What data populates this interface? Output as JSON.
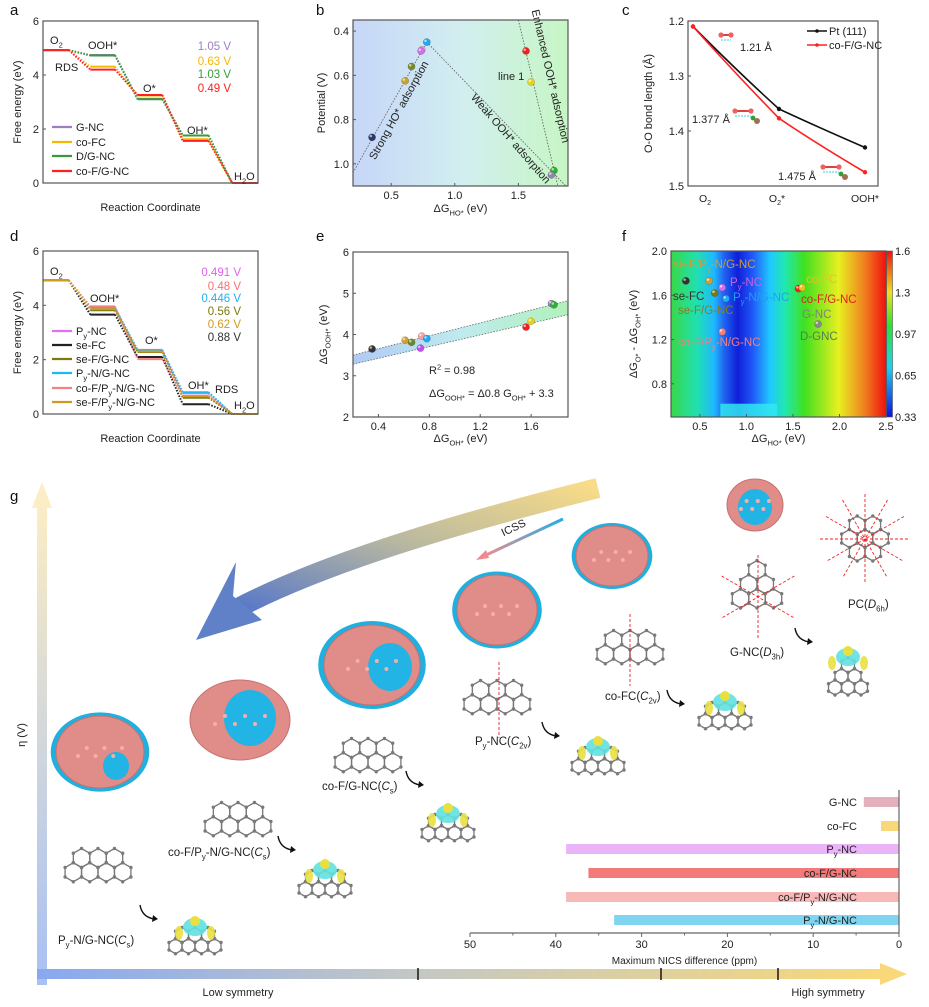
{
  "panel_labels": {
    "a": "a",
    "b": "b",
    "c": "c",
    "d": "d",
    "e": "e",
    "f": "f",
    "g": "g"
  },
  "chart_data": [
    {
      "panel": "a",
      "type": "line",
      "title": "",
      "xlabel": "Reaction Coordinate",
      "ylabel": "Free energy (eV)",
      "ylim": [
        0,
        6
      ],
      "yticks": [
        "0",
        "2",
        "4",
        "6"
      ],
      "steps": [
        "O2",
        "OOH*",
        "O*",
        "OH*",
        "H2O"
      ],
      "annotations": [
        "RDS"
      ],
      "series": [
        {
          "name": "G-NC",
          "color": "#9b7fc0",
          "values": [
            4.92,
            4.74,
            3.12,
            1.76,
            0
          ],
          "overpotential": "1.05 V"
        },
        {
          "name": "co-FC",
          "color": "#f5b800",
          "values": [
            4.92,
            4.31,
            3.24,
            1.62,
            0
          ],
          "overpotential": "0.63 V"
        },
        {
          "name": "D/G-NC",
          "color": "#3a9a3a",
          "values": [
            4.92,
            4.72,
            3.1,
            1.76,
            0
          ],
          "overpotential": "1.03 V"
        },
        {
          "name": "co-F/G-NC",
          "color": "#ff2020",
          "values": [
            4.92,
            4.2,
            3.26,
            1.56,
            0
          ],
          "overpotential": "0.49 V"
        }
      ]
    },
    {
      "panel": "b",
      "type": "scatter",
      "xlabel": "ΔGHO* (eV)",
      "ylabel": "Potential (V)",
      "xlim": [
        0.2,
        1.89
      ],
      "ylim": [
        1.1,
        0.35
      ],
      "xticks": [
        "0.5",
        "1.0",
        "1.5"
      ],
      "yticks": [
        "0.4",
        "0.6",
        "0.8",
        "1.0"
      ],
      "points": [
        {
          "x": 0.35,
          "y": 0.88,
          "color": "#2a3a6a"
        },
        {
          "x": 0.61,
          "y": 0.625,
          "color": "#c8a030"
        },
        {
          "x": 0.66,
          "y": 0.56,
          "color": "#7a8a2a"
        },
        {
          "x": 0.74,
          "y": 0.485,
          "color": "#f0a0c0"
        },
        {
          "x": 0.735,
          "y": 0.49,
          "color": "#d070f0"
        },
        {
          "x": 0.78,
          "y": 0.45,
          "color": "#20a8f0"
        },
        {
          "x": 1.56,
          "y": 0.49,
          "color": "#f02020"
        },
        {
          "x": 1.6,
          "y": 0.63,
          "color": "#e8d020"
        },
        {
          "x": 1.78,
          "y": 1.03,
          "color": "#30b030"
        },
        {
          "x": 1.76,
          "y": 1.05,
          "color": "#8a8aa8"
        }
      ],
      "lines": [
        {
          "from": [
            0.2,
            1.04
          ],
          "to": [
            0.78,
            0.45
          ]
        },
        {
          "from": [
            0.78,
            0.45
          ],
          "to": [
            1.89,
            1.11
          ]
        },
        {
          "from": [
            1.5,
            0.35
          ],
          "to": [
            1.81,
            1.1
          ]
        }
      ],
      "annotations": [
        "Strong HO* adsorption",
        "Weak OOH* adsorption",
        "Enhanced OOH* adsorption",
        "line 1"
      ]
    },
    {
      "panel": "c",
      "type": "line",
      "xlabel": "",
      "ylabel": "O-O bond length (Å)",
      "ylim": [
        1.5,
        1.2
      ],
      "yticks": [
        "1.2",
        "1.3",
        "1.4",
        "1.5"
      ],
      "categories": [
        "O2",
        "O2*",
        "OOH*"
      ],
      "series": [
        {
          "name": "Pt (111)",
          "color": "#111111",
          "values": [
            1.21,
            1.36,
            1.43
          ]
        },
        {
          "name": "co-F/G-NC",
          "color": "#ff2020",
          "values": [
            1.21,
            1.377,
            1.475
          ]
        }
      ],
      "annotations": [
        "1.21 Å",
        "1.377 Å",
        "1.475 Å"
      ]
    },
    {
      "panel": "d",
      "type": "line",
      "xlabel": "Reaction Coordinate",
      "ylabel": "Free energy (eV)",
      "ylim": [
        0,
        6
      ],
      "yticks": [
        "0",
        "2",
        "4",
        "6"
      ],
      "steps": [
        "O2",
        "OOH*",
        "O*",
        "OH*",
        "H2O"
      ],
      "annotations": [
        "RDS"
      ],
      "series": [
        {
          "name": "Py-NC",
          "color": "#e070f0",
          "values": [
            4.92,
            3.9,
            2.36,
            0.76,
            0
          ],
          "overpotential": "0.491 V"
        },
        {
          "name": "se-FC",
          "color": "#222222",
          "values": [
            4.92,
            3.66,
            2.1,
            0.36,
            0
          ],
          "overpotential": "0.88 V"
        },
        {
          "name": "se-F/G-NC",
          "color": "#7a7a10",
          "values": [
            4.92,
            3.82,
            2.28,
            0.6,
            0
          ],
          "overpotential": "0.56 V"
        },
        {
          "name": "Py-N/G-NC",
          "color": "#20b8f0",
          "values": [
            4.92,
            3.9,
            2.34,
            0.8,
            0
          ],
          "overpotential": "0.446 V"
        },
        {
          "name": "co-F/Py-N/G-NC",
          "color": "#f88080",
          "values": [
            4.92,
            3.96,
            2.02,
            0.66,
            0
          ],
          "overpotential": "0.48 V"
        },
        {
          "name": "se-F/Py-N/G-NC",
          "color": "#d09a20",
          "values": [
            4.92,
            3.86,
            2.3,
            0.66,
            0
          ],
          "overpotential": "0.62 V"
        }
      ],
      "overpotential_order": [
        "0.491 V",
        "0.48 V",
        "0.446 V",
        "0.56 V",
        "0.62 V",
        "0.88 V"
      ],
      "overpotential_colors": [
        "#e060f0",
        "#f87070",
        "#20b0f0",
        "#7a7a10",
        "#d09a20",
        "#333333"
      ]
    },
    {
      "panel": "e",
      "type": "scatter",
      "xlabel": "ΔGOH* (eV)",
      "ylabel": "ΔGOOH* (eV)",
      "xlim": [
        0.2,
        1.89
      ],
      "ylim": [
        2,
        6
      ],
      "xticks": [
        "0.4",
        "0.8",
        "1.2",
        "1.6"
      ],
      "yticks": [
        "2",
        "3",
        "4",
        "5",
        "6"
      ],
      "points": [
        {
          "x": 0.35,
          "y": 3.65,
          "color": "#333333"
        },
        {
          "x": 0.61,
          "y": 3.86,
          "color": "#d0a030"
        },
        {
          "x": 0.66,
          "y": 3.81,
          "color": "#6a8a2a"
        },
        {
          "x": 0.74,
          "y": 3.96,
          "color": "#f8a0a0"
        },
        {
          "x": 0.78,
          "y": 3.9,
          "color": "#20a8f0"
        },
        {
          "x": 0.73,
          "y": 3.67,
          "color": "#c050f0"
        },
        {
          "x": 1.56,
          "y": 4.18,
          "color": "#f02020"
        },
        {
          "x": 1.6,
          "y": 4.32,
          "color": "#e8d020"
        },
        {
          "x": 1.76,
          "y": 4.75,
          "color": "#9a80c0"
        },
        {
          "x": 1.78,
          "y": 4.72,
          "color": "#30b030"
        }
      ],
      "band_upper": {
        "from": [
          0.2,
          3.5
        ],
        "to": [
          1.89,
          4.82
        ]
      },
      "band_lower": {
        "from": [
          0.2,
          3.28
        ],
        "to": [
          1.89,
          4.48
        ]
      },
      "annotations": [
        "R2 = 0.98",
        "ΔGOOH* = Δ0.8 GOH* + 3.3"
      ]
    },
    {
      "panel": "f",
      "type": "heatmap",
      "xlabel": "ΔGHO* (eV)",
      "ylabel": "ΔGO* - ΔGOH* (eV)",
      "xlim": [
        0.19,
        2.5
      ],
      "ylim": [
        0.5,
        2.0
      ],
      "xticks": [
        "0.5",
        "1.0",
        "1.5",
        "2.0",
        "2.5"
      ],
      "yticks": [
        "0.8",
        "1.2",
        "1.6",
        "2.0"
      ],
      "colorbar": {
        "ticks": [
          "1.6",
          "1.3",
          "0.97",
          "0.65",
          "0.33"
        ],
        "range": [
          0.33,
          1.6
        ]
      },
      "points": [
        {
          "name": "se-FC",
          "x": 0.35,
          "y": 1.73,
          "color": "#333333"
        },
        {
          "name": "se-F/Py-N/G-NC",
          "x": 0.6,
          "y": 1.73,
          "color": "#d0a030"
        },
        {
          "name": "Py-NC",
          "x": 0.74,
          "y": 1.67,
          "color": "#d070f0"
        },
        {
          "name": "se-F/G-NC",
          "x": 0.66,
          "y": 1.62,
          "color": "#7a7a10"
        },
        {
          "name": "Py-N/G-NC",
          "x": 0.78,
          "y": 1.57,
          "color": "#20a8f0"
        },
        {
          "name": "co-F/Py-N/G-NC",
          "x": 0.74,
          "y": 1.27,
          "color": "#f08080"
        },
        {
          "name": "co-F/G-NC",
          "x": 1.56,
          "y": 1.66,
          "color": "#f02020"
        },
        {
          "name": "co-FC",
          "x": 1.6,
          "y": 1.67,
          "color": "#e8c020"
        },
        {
          "name": "G-NC",
          "x": 1.77,
          "y": 1.34,
          "color": "#8a8a8a"
        }
      ],
      "labels": [
        {
          "text": "se-F/Py-N/G-NC",
          "color": "#c8a040"
        },
        {
          "text": "se-FC",
          "color": "#333333"
        },
        {
          "text": "Py-NC",
          "color": "#d060e0"
        },
        {
          "text": "Py-N/G-NC",
          "color": "#20a0f0"
        },
        {
          "text": "se-F/G-NC",
          "color": "#808020"
        },
        {
          "text": "co-F/Py-N/G-NC",
          "color": "#f08080"
        },
        {
          "text": "co-FC",
          "color": "#e8c020"
        },
        {
          "text": "co-F/G-NC",
          "color": "#e02020"
        },
        {
          "text": "G-NC",
          "color": "#808080"
        },
        {
          "text": "D-GNC",
          "color": "#508050"
        }
      ]
    },
    {
      "panel": "g",
      "type": "bar",
      "orientation": "horizontal",
      "xlabel": "Maximum NICS difference (ppm)",
      "xlim": [
        50,
        0
      ],
      "xticks": [
        "50",
        "40",
        "30",
        "20",
        "10",
        "0"
      ],
      "categories": [
        "G-NC",
        "co-FC",
        "Py-NC",
        "co-F/G-NC",
        "co-F/Py-N/G-NC",
        "Py-N/G-NC"
      ],
      "values": [
        4.1,
        2.1,
        38.8,
        36.2,
        38.8,
        33.2
      ],
      "colors": [
        "#e4b0bc",
        "#f8d878",
        "#ecb4f8",
        "#f27a7a",
        "#f8b8b8",
        "#80d4f0"
      ]
    }
  ],
  "panel_g": {
    "y_axis_label": "η (V)",
    "low_label": "Low symmetry",
    "high_label": "High symmetry",
    "icss_label": "ICSS",
    "molecules": [
      {
        "label": "Py-N/G-NC(Cs)"
      },
      {
        "label": "co-F/Py-N/G-NC(Cs)"
      },
      {
        "label": "co-F/G-NC(Cs)"
      },
      {
        "label": "Py-NC(C2v)"
      },
      {
        "label": "co-FC(C2v)"
      },
      {
        "label": "G-NC(D3h)"
      },
      {
        "label": "PC(D6h)"
      }
    ]
  }
}
